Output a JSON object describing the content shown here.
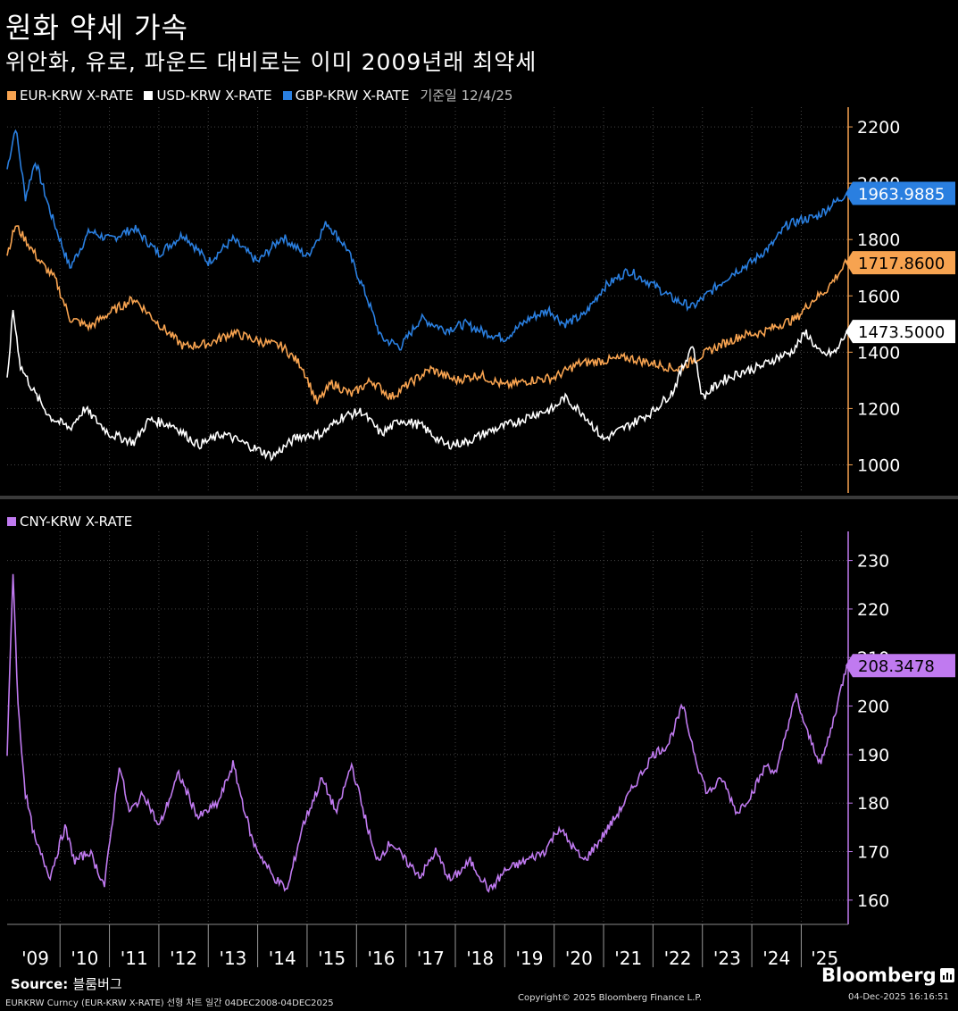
{
  "title": "원화 약세 가속",
  "subtitle": "위안화, 유로, 파운드 대비로는 이미 2009년래 최약세",
  "legend_top": [
    {
      "label": "EUR-KRW X-RATE",
      "color": "#f7a350"
    },
    {
      "label": "USD-KRW X-RATE",
      "color": "#ffffff"
    },
    {
      "label": "GBP-KRW X-RATE",
      "color": "#2a7fe0"
    }
  ],
  "as_of": "기준일 12/4/25",
  "legend_bottom": {
    "label": "CNY-KRW X-RATE",
    "color": "#c07af0"
  },
  "footer": {
    "source_label": "Source:",
    "source_value": "블룸버그",
    "meta": "EURKRW Curncy (EUR-KRW X-RATE) 선형 차트 일간 04DEC2008-04DEC2025",
    "copyright": "Copyright© 2025 Bloomberg Finance L.P.",
    "brand": "Bloomberg",
    "timestamp": "04-Dec-2025 16:16:51"
  },
  "chart_data": [
    {
      "type": "line",
      "x_tick_labels": [
        "'09",
        "'10",
        "'11",
        "'12",
        "'13",
        "'14",
        "'15",
        "'16",
        "'17",
        "'18",
        "'19",
        "'20",
        "'21",
        "'22",
        "'23",
        "'24",
        "'25"
      ],
      "ylim": [
        900,
        2270
      ],
      "y_ticks": [
        1000,
        1200,
        1400,
        1600,
        1800,
        2000,
        2200
      ],
      "grid": true,
      "series": [
        {
          "name": "GBP-KRW X-RATE",
          "color": "#2a7fe0",
          "last": "1963.9885",
          "x": [
            2008.93,
            2009.1,
            2009.3,
            2009.5,
            2009.8,
            2010.2,
            2010.6,
            2011.0,
            2011.5,
            2012.0,
            2012.5,
            2013.0,
            2013.5,
            2014.0,
            2014.5,
            2015.0,
            2015.4,
            2015.8,
            2016.2,
            2016.5,
            2016.9,
            2017.3,
            2017.8,
            2018.2,
            2018.6,
            2019.0,
            2019.5,
            2019.9,
            2020.2,
            2020.6,
            2021.0,
            2021.5,
            2022.0,
            2022.4,
            2022.8,
            2023.2,
            2023.6,
            2024.0,
            2024.4,
            2024.7,
            2025.0,
            2025.3,
            2025.6,
            2025.92
          ],
          "values": [
            2050,
            2200,
            1950,
            2080,
            1900,
            1700,
            1830,
            1800,
            1840,
            1750,
            1820,
            1720,
            1800,
            1720,
            1810,
            1740,
            1860,
            1770,
            1600,
            1450,
            1420,
            1520,
            1480,
            1500,
            1470,
            1450,
            1520,
            1550,
            1500,
            1530,
            1630,
            1690,
            1640,
            1590,
            1560,
            1620,
            1680,
            1720,
            1780,
            1850,
            1870,
            1880,
            1920,
            1963.9885
          ]
        },
        {
          "name": "EUR-KRW X-RATE",
          "color": "#f7a350",
          "last": "1717.8600",
          "x": [
            2008.93,
            2009.1,
            2009.3,
            2009.6,
            2009.9,
            2010.2,
            2010.6,
            2011.0,
            2011.5,
            2012.0,
            2012.5,
            2013.0,
            2013.5,
            2014.0,
            2014.5,
            2014.9,
            2015.2,
            2015.5,
            2015.9,
            2016.3,
            2016.7,
            2017.0,
            2017.5,
            2018.0,
            2018.5,
            2019.0,
            2019.5,
            2020.0,
            2020.5,
            2021.0,
            2021.5,
            2022.0,
            2022.5,
            2022.9,
            2023.3,
            2023.8,
            2024.2,
            2024.6,
            2024.9,
            2025.2,
            2025.5,
            2025.92
          ],
          "values": [
            1750,
            1850,
            1800,
            1720,
            1660,
            1520,
            1490,
            1540,
            1590,
            1500,
            1420,
            1430,
            1470,
            1440,
            1420,
            1350,
            1220,
            1290,
            1250,
            1300,
            1240,
            1280,
            1340,
            1300,
            1320,
            1280,
            1300,
            1310,
            1360,
            1370,
            1380,
            1360,
            1340,
            1380,
            1420,
            1460,
            1470,
            1500,
            1520,
            1580,
            1620,
            1717.86
          ]
        },
        {
          "name": "USD-KRW X-RATE",
          "color": "#ffffff",
          "last": "1473.5000",
          "x": [
            2008.93,
            2009.05,
            2009.2,
            2009.5,
            2009.8,
            2010.2,
            2010.5,
            2011.0,
            2011.5,
            2011.8,
            2012.3,
            2012.8,
            2013.3,
            2013.8,
            2014.3,
            2014.8,
            2015.3,
            2015.7,
            2016.1,
            2016.5,
            2016.9,
            2017.3,
            2017.8,
            2018.2,
            2018.7,
            2019.2,
            2019.6,
            2020.0,
            2020.2,
            2020.6,
            2021.0,
            2021.5,
            2022.0,
            2022.4,
            2022.8,
            2023.0,
            2023.4,
            2023.8,
            2024.2,
            2024.5,
            2024.8,
            2025.1,
            2025.4,
            2025.7,
            2025.92
          ],
          "values": [
            1300,
            1550,
            1350,
            1250,
            1170,
            1130,
            1200,
            1110,
            1080,
            1160,
            1140,
            1070,
            1110,
            1070,
            1030,
            1100,
            1110,
            1170,
            1190,
            1110,
            1160,
            1140,
            1070,
            1080,
            1120,
            1150,
            1180,
            1200,
            1240,
            1180,
            1090,
            1140,
            1190,
            1260,
            1430,
            1240,
            1300,
            1330,
            1350,
            1380,
            1400,
            1470,
            1390,
            1400,
            1473.5
          ]
        }
      ]
    },
    {
      "type": "line",
      "x_tick_labels": [
        "'09",
        "'10",
        "'11",
        "'12",
        "'13",
        "'14",
        "'15",
        "'16",
        "'17",
        "'18",
        "'19",
        "'20",
        "'21",
        "'22",
        "'23",
        "'24",
        "'25"
      ],
      "ylim": [
        155,
        236
      ],
      "y_ticks": [
        160,
        170,
        180,
        190,
        200,
        210,
        220,
        230
      ],
      "grid": true,
      "series": [
        {
          "name": "CNY-KRW X-RATE",
          "color": "#c07af0",
          "last": "208.3478",
          "x": [
            2008.93,
            2009.05,
            2009.15,
            2009.3,
            2009.5,
            2009.8,
            2010.1,
            2010.3,
            2010.6,
            2010.9,
            2011.2,
            2011.4,
            2011.7,
            2012.0,
            2012.4,
            2012.8,
            2013.2,
            2013.5,
            2013.9,
            2014.3,
            2014.6,
            2014.9,
            2015.3,
            2015.6,
            2015.9,
            2016.1,
            2016.4,
            2016.7,
            2017.0,
            2017.3,
            2017.6,
            2017.9,
            2018.3,
            2018.7,
            2019.0,
            2019.4,
            2019.8,
            2020.1,
            2020.3,
            2020.6,
            2020.9,
            2021.3,
            2021.7,
            2022.0,
            2022.3,
            2022.6,
            2022.9,
            2023.1,
            2023.4,
            2023.7,
            2024.0,
            2024.3,
            2024.5,
            2024.7,
            2024.9,
            2025.1,
            2025.4,
            2025.6,
            2025.92
          ],
          "values": [
            190,
            228,
            200,
            182,
            172,
            165,
            175,
            168,
            170,
            163,
            188,
            178,
            182,
            175,
            186,
            177,
            180,
            188,
            172,
            165,
            162,
            175,
            185,
            178,
            188,
            180,
            168,
            172,
            168,
            165,
            170,
            164,
            168,
            162,
            166,
            168,
            170,
            175,
            172,
            168,
            172,
            178,
            185,
            190,
            192,
            200,
            188,
            182,
            185,
            178,
            182,
            188,
            186,
            195,
            202,
            195,
            188,
            195,
            208.3478
          ]
        }
      ]
    }
  ]
}
